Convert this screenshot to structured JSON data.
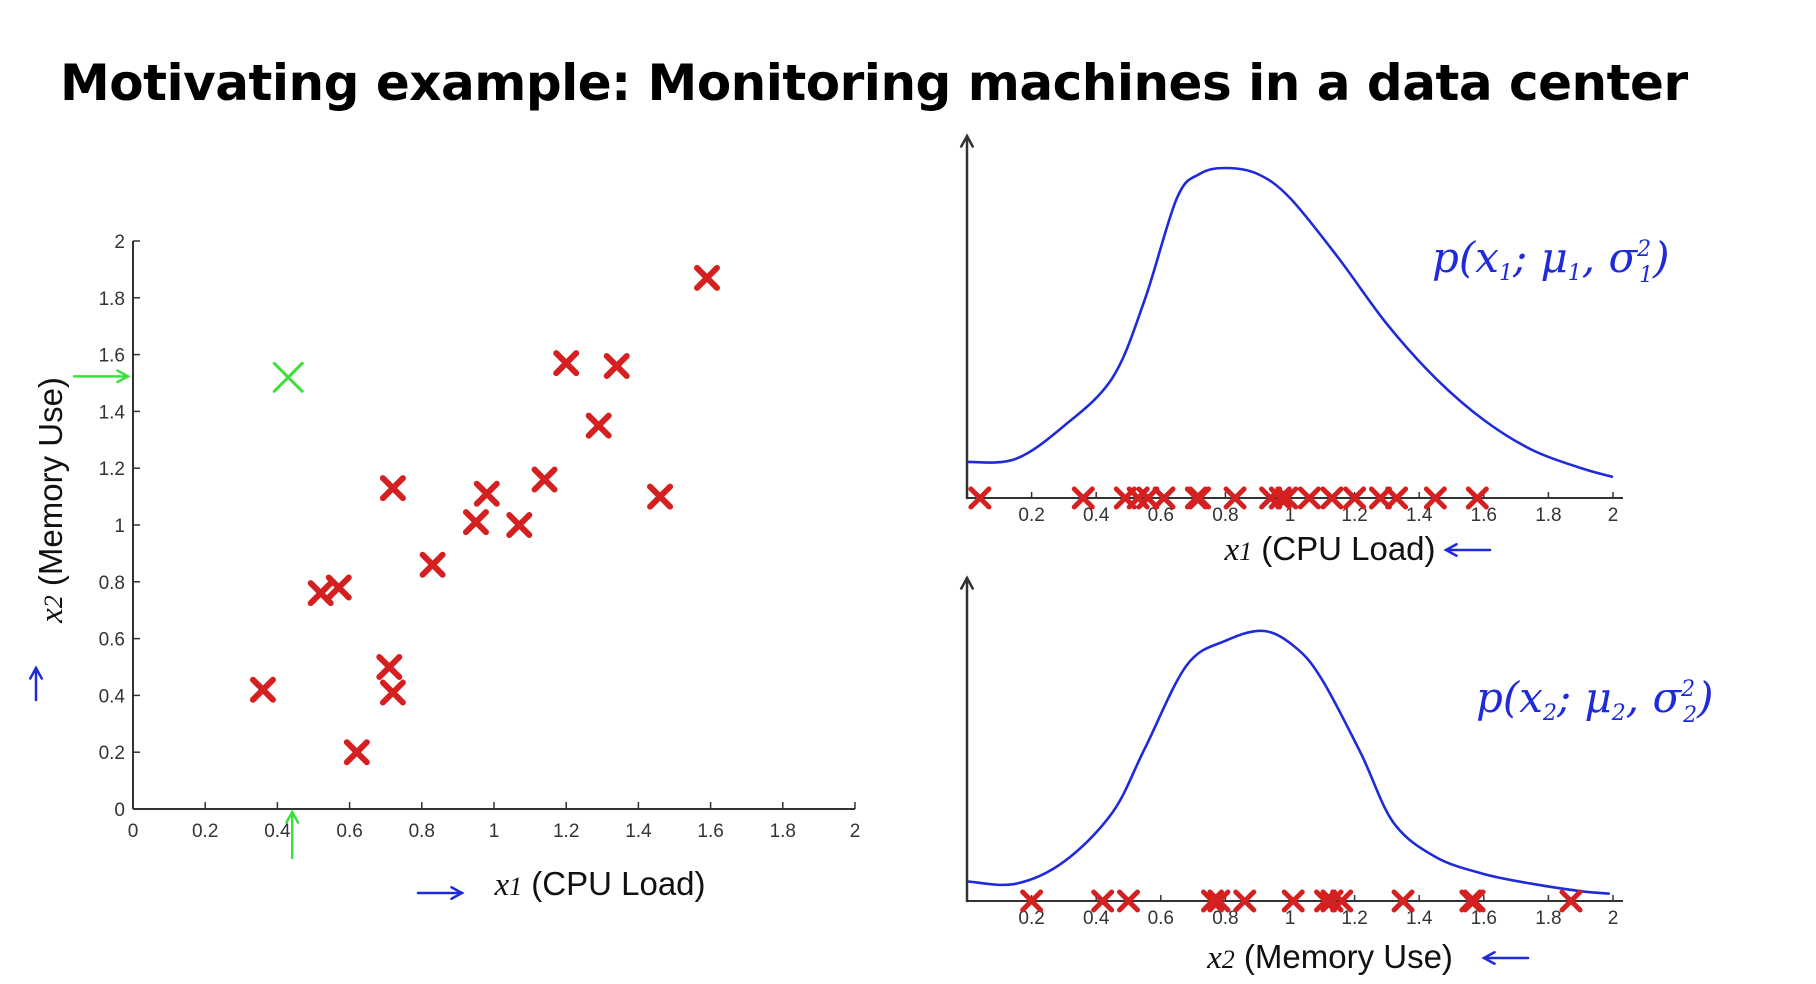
{
  "title": "Motivating example: Monitoring machines in a data center",
  "colors": {
    "mark": "#d42020",
    "anomaly": "#3ce03c",
    "curve": "#1f2bd8",
    "axis": "#333333"
  },
  "chart_data": [
    {
      "type": "scatter",
      "xlabel_var": "x",
      "xlabel_sub": "1",
      "xlabel_text": "(CPU Load)",
      "ylabel_var": "x",
      "ylabel_sub": "2",
      "ylabel_text": "(Memory Use)",
      "xlim": [
        0,
        2
      ],
      "ylim": [
        0,
        2
      ],
      "xticks": [
        "0",
        "0.2",
        "0.4",
        "0.6",
        "0.8",
        "1",
        "1.2",
        "1.4",
        "1.6",
        "1.8",
        "2"
      ],
      "yticks": [
        "0",
        "0.2",
        "0.4",
        "0.6",
        "0.8",
        "1",
        "1.2",
        "1.4",
        "1.6",
        "1.8",
        "2"
      ],
      "points": [
        [
          0.36,
          0.42
        ],
        [
          0.52,
          0.76
        ],
        [
          0.57,
          0.78
        ],
        [
          0.62,
          0.2
        ],
        [
          0.71,
          0.5
        ],
        [
          0.72,
          0.41
        ],
        [
          0.72,
          1.13
        ],
        [
          0.83,
          0.86
        ],
        [
          0.95,
          1.01
        ],
        [
          0.98,
          1.11
        ],
        [
          1.07,
          1.0
        ],
        [
          1.14,
          1.16
        ],
        [
          1.2,
          1.57
        ],
        [
          1.29,
          1.35
        ],
        [
          1.34,
          1.56
        ],
        [
          1.46,
          1.1
        ],
        [
          1.59,
          1.87
        ]
      ],
      "anomaly": [
        0.43,
        1.52
      ]
    },
    {
      "type": "line",
      "xlabel_var": "x",
      "xlabel_sub": "1",
      "xlabel_text": "(CPU Load)",
      "xlim": [
        0,
        2
      ],
      "xticks": [
        "0.2",
        "0.4",
        "0.6",
        "0.8",
        "1",
        "1.2",
        "1.4",
        "1.6",
        "1.8",
        "2"
      ],
      "annotation": {
        "base": "p(x",
        "sub1": "1",
        "mid": "; μ",
        "sub2": "1",
        "end": ", σ",
        "sup": "2",
        "sub3": "1",
        "close": ")"
      },
      "curve": [
        [
          0.0,
          0.12
        ],
        [
          0.15,
          0.13
        ],
        [
          0.3,
          0.24
        ],
        [
          0.45,
          0.4
        ],
        [
          0.55,
          0.66
        ],
        [
          0.65,
          1.0
        ],
        [
          0.72,
          1.08
        ],
        [
          0.8,
          1.1
        ],
        [
          0.9,
          1.08
        ],
        [
          1.0,
          1.0
        ],
        [
          1.15,
          0.8
        ],
        [
          1.3,
          0.58
        ],
        [
          1.45,
          0.4
        ],
        [
          1.6,
          0.26
        ],
        [
          1.75,
          0.16
        ],
        [
          1.9,
          0.1
        ],
        [
          2.0,
          0.07
        ]
      ],
      "marks": [
        0.04,
        0.36,
        0.49,
        0.53,
        0.56,
        0.61,
        0.71,
        0.72,
        0.83,
        0.94,
        0.97,
        0.99,
        1.06,
        1.13,
        1.2,
        1.28,
        1.33,
        1.45,
        1.58
      ]
    },
    {
      "type": "line",
      "xlabel_var": "x",
      "xlabel_sub": "2",
      "xlabel_text": "(Memory Use)",
      "xlim": [
        0,
        2
      ],
      "xticks": [
        "0.2",
        "0.4",
        "0.6",
        "0.8",
        "1",
        "1.2",
        "1.4",
        "1.6",
        "1.8",
        "2"
      ],
      "annotation": {
        "base": "p(x",
        "sub1": "2",
        "mid": "; μ",
        "sub2": "2",
        "end": ", σ",
        "sup": "2",
        "sub3": "2",
        "close": ")"
      },
      "curve": [
        [
          0.0,
          0.08
        ],
        [
          0.15,
          0.07
        ],
        [
          0.3,
          0.16
        ],
        [
          0.45,
          0.36
        ],
        [
          0.55,
          0.62
        ],
        [
          0.68,
          0.96
        ],
        [
          0.8,
          1.06
        ],
        [
          0.92,
          1.1
        ],
        [
          1.02,
          1.03
        ],
        [
          1.1,
          0.9
        ],
        [
          1.22,
          0.6
        ],
        [
          1.32,
          0.32
        ],
        [
          1.45,
          0.18
        ],
        [
          1.6,
          0.11
        ],
        [
          1.75,
          0.07
        ],
        [
          1.9,
          0.04
        ],
        [
          1.99,
          0.03
        ]
      ],
      "marks": [
        0.2,
        0.42,
        0.5,
        0.76,
        0.78,
        0.86,
        1.01,
        1.11,
        1.13,
        1.16,
        1.35,
        1.56,
        1.57,
        1.87
      ]
    }
  ]
}
